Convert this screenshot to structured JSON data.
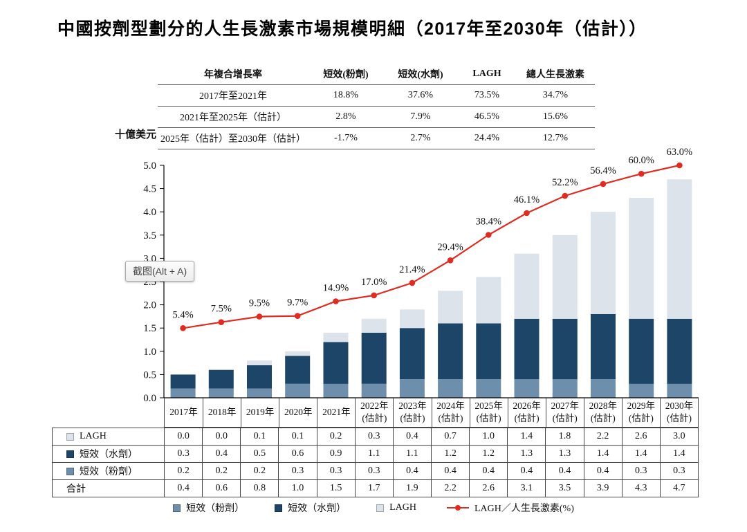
{
  "screenshot_tooltip": "截图(Alt + A)",
  "cagr_table": {
    "headers": [
      "年複合增長率",
      "短效(粉劑)",
      "短效(水劑)",
      "LAGH",
      "總人生長激素"
    ],
    "rows": [
      {
        "label": "2017年至2021年",
        "values": [
          "18.8%",
          "37.6%",
          "73.5%",
          "34.7%"
        ]
      },
      {
        "label": "2021年至2025年（估計）",
        "values": [
          "2.8%",
          "7.9%",
          "46.5%",
          "15.6%"
        ]
      },
      {
        "label": "2025年（估計）至2030年（估計）",
        "values": [
          "-1.7%",
          "2.7%",
          "24.4%",
          "12.7%"
        ]
      }
    ]
  },
  "chart_data": {
    "type": "bar",
    "stacked": true,
    "title": "中國按劑型劃分的人生長激素市場規模明細（2017年至2030年（估計））",
    "ylabel": "十億美元",
    "xlabel": "",
    "ylim": [
      0,
      5.0
    ],
    "ytick_step": 0.5,
    "grid": false,
    "legend_position": "bottom",
    "categories": [
      "2017年",
      "2018年",
      "2019年",
      "2020年",
      "2021年",
      "2022年\n(估計)",
      "2023年\n(估計)",
      "2024年\n(估計)",
      "2025年\n(估計)",
      "2026年\n(估計)",
      "2027年\n(估計)",
      "2028年\n(估計)",
      "2029年\n(估計)",
      "2030年\n(估計)"
    ],
    "series": [
      {
        "name": "短效（粉劑）",
        "color": "#6e8fac",
        "values": [
          0.2,
          0.2,
          0.2,
          0.3,
          0.3,
          0.3,
          0.4,
          0.4,
          0.4,
          0.4,
          0.4,
          0.4,
          0.3,
          0.3
        ]
      },
      {
        "name": "短效（水劑）",
        "color": "#1d4568",
        "values": [
          0.3,
          0.4,
          0.5,
          0.6,
          0.9,
          1.1,
          1.1,
          1.2,
          1.2,
          1.3,
          1.3,
          1.4,
          1.4,
          1.4
        ]
      },
      {
        "name": "LAGH",
        "color": "#dde3ea",
        "values": [
          0.0,
          0.0,
          0.1,
          0.1,
          0.2,
          0.3,
          0.4,
          0.7,
          1.0,
          1.4,
          1.8,
          2.2,
          2.6,
          3.0
        ]
      }
    ],
    "totals": [
      0.4,
      0.6,
      0.8,
      1.0,
      1.5,
      1.7,
      1.9,
      2.2,
      2.6,
      3.1,
      3.5,
      3.9,
      4.3,
      4.7
    ],
    "line_series": {
      "name": "LAGH／人生長激素(%)",
      "color": "#e02b20",
      "values_pct": [
        5.4,
        7.5,
        9.5,
        9.7,
        14.9,
        17.0,
        21.4,
        29.4,
        38.4,
        46.1,
        52.2,
        56.4,
        60.0,
        63.0
      ],
      "labels": [
        "5.4%",
        "7.5%",
        "9.5%",
        "9.7%",
        "14.9%",
        "17.0%",
        "21.4%",
        "29.4%",
        "38.4%",
        "46.1%",
        "52.2%",
        "56.4%",
        "60.0%",
        "63.0%"
      ]
    }
  },
  "bottom_table": {
    "rows": [
      {
        "label": "LAGH",
        "swatch": "#dde3ea",
        "values": [
          "0.0",
          "0.0",
          "0.1",
          "0.1",
          "0.2",
          "0.3",
          "0.4",
          "0.7",
          "1.0",
          "1.4",
          "1.8",
          "2.2",
          "2.6",
          "3.0"
        ]
      },
      {
        "label": "短效（水劑）",
        "swatch": "#1d4568",
        "values": [
          "0.3",
          "0.4",
          "0.5",
          "0.6",
          "0.9",
          "1.1",
          "1.1",
          "1.2",
          "1.2",
          "1.3",
          "1.3",
          "1.4",
          "1.4",
          "1.4"
        ]
      },
      {
        "label": "短效（粉劑）",
        "swatch": "#6e8fac",
        "values": [
          "0.2",
          "0.2",
          "0.2",
          "0.3",
          "0.3",
          "0.3",
          "0.4",
          "0.4",
          "0.4",
          "0.4",
          "0.4",
          "0.4",
          "0.3",
          "0.3"
        ]
      },
      {
        "label": "合計",
        "swatch": null,
        "values": [
          "0.4",
          "0.6",
          "0.8",
          "1.0",
          "1.5",
          "1.7",
          "1.9",
          "2.2",
          "2.6",
          "3.1",
          "3.5",
          "3.9",
          "4.3",
          "4.7"
        ]
      }
    ]
  },
  "legend": {
    "items": [
      {
        "type": "swatch",
        "color": "#6e8fac",
        "label": "短效（粉劑）"
      },
      {
        "type": "swatch",
        "color": "#1d4568",
        "label": "短效（水劑）"
      },
      {
        "type": "swatch",
        "color": "#dde3ea",
        "label": "LAGH"
      },
      {
        "type": "line",
        "color": "#e02b20",
        "label": "LAGH／人生長激素(%)"
      }
    ]
  }
}
